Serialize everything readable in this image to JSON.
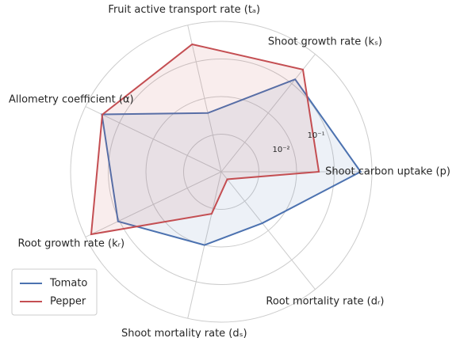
{
  "chart_data": {
    "type": "radar",
    "log_scale": true,
    "categories": [
      "Shoot carbon uptake (p)",
      "Shoot growth rate (kₛ)",
      "Fruit active transport rate (tₐ)",
      "Allometry coefficient (α)",
      "Root growth rate (kᵣ)",
      "Shoot mortality rate (dₛ)",
      "Root mortality rate (dᵣ)"
    ],
    "series": [
      {
        "name": "Tomato",
        "color": "#4c72b0",
        "values": [
          0.5,
          0.14,
          0.004,
          0.33,
          0.11,
          0.01,
          0.0056
        ]
      },
      {
        "name": "Pepper",
        "color": "#c44e52",
        "values": [
          0.039,
          0.3,
          0.3,
          0.32,
          0.68,
          0.0014,
          0.00018
        ]
      }
    ],
    "ylim": [
      0.0001,
      1
    ],
    "yticks": [
      {
        "value": 0.001,
        "label": null
      },
      {
        "value": 0.01,
        "label": "10⁻²"
      },
      {
        "value": 0.1,
        "label": "10⁻¹"
      }
    ],
    "grid": true,
    "legend": "lower left"
  }
}
